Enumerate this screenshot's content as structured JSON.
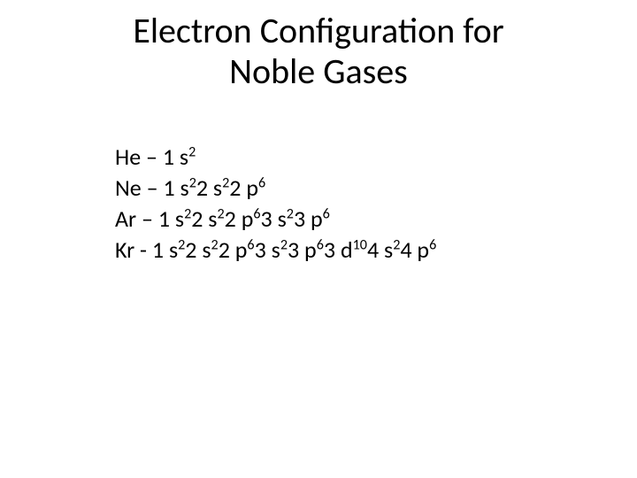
{
  "title": {
    "line1": "Electron Configuration for",
    "line2": "Noble Gases",
    "fontsize": 40,
    "color": "#000000"
  },
  "body": {
    "fontsize": 26,
    "color": "#000000",
    "rows": [
      {
        "element": "He",
        "sep": " – ",
        "config": [
          {
            "base": "1s",
            "sup": "2"
          }
        ]
      },
      {
        "element": "Ne",
        "sep": " – ",
        "config": [
          {
            "base": "1s",
            "sup": "2"
          },
          {
            "base": "2s",
            "sup": "2"
          },
          {
            "base": "2p",
            "sup": "6"
          }
        ]
      },
      {
        "element": "Ar",
        "sep": " – ",
        "config": [
          {
            "base": "1s",
            "sup": "2"
          },
          {
            "base": "2s",
            "sup": "2"
          },
          {
            "base": "2p",
            "sup": "6"
          },
          {
            "base": "3s",
            "sup": "2"
          },
          {
            "base": "3p",
            "sup": "6"
          }
        ]
      },
      {
        "element": "Kr",
        "sep": " - ",
        "config": [
          {
            "base": "1s",
            "sup": "2"
          },
          {
            "base": "2s",
            "sup": "2"
          },
          {
            "base": "2p",
            "sup": "6"
          },
          {
            "base": "3s",
            "sup": "2"
          },
          {
            "base": "3p",
            "sup": "6"
          },
          {
            "base": "3d",
            "sup": "10"
          },
          {
            "base": "4s",
            "sup": "2"
          },
          {
            "base": "4p",
            "sup": "6"
          }
        ]
      }
    ]
  },
  "background_color": "#ffffff"
}
